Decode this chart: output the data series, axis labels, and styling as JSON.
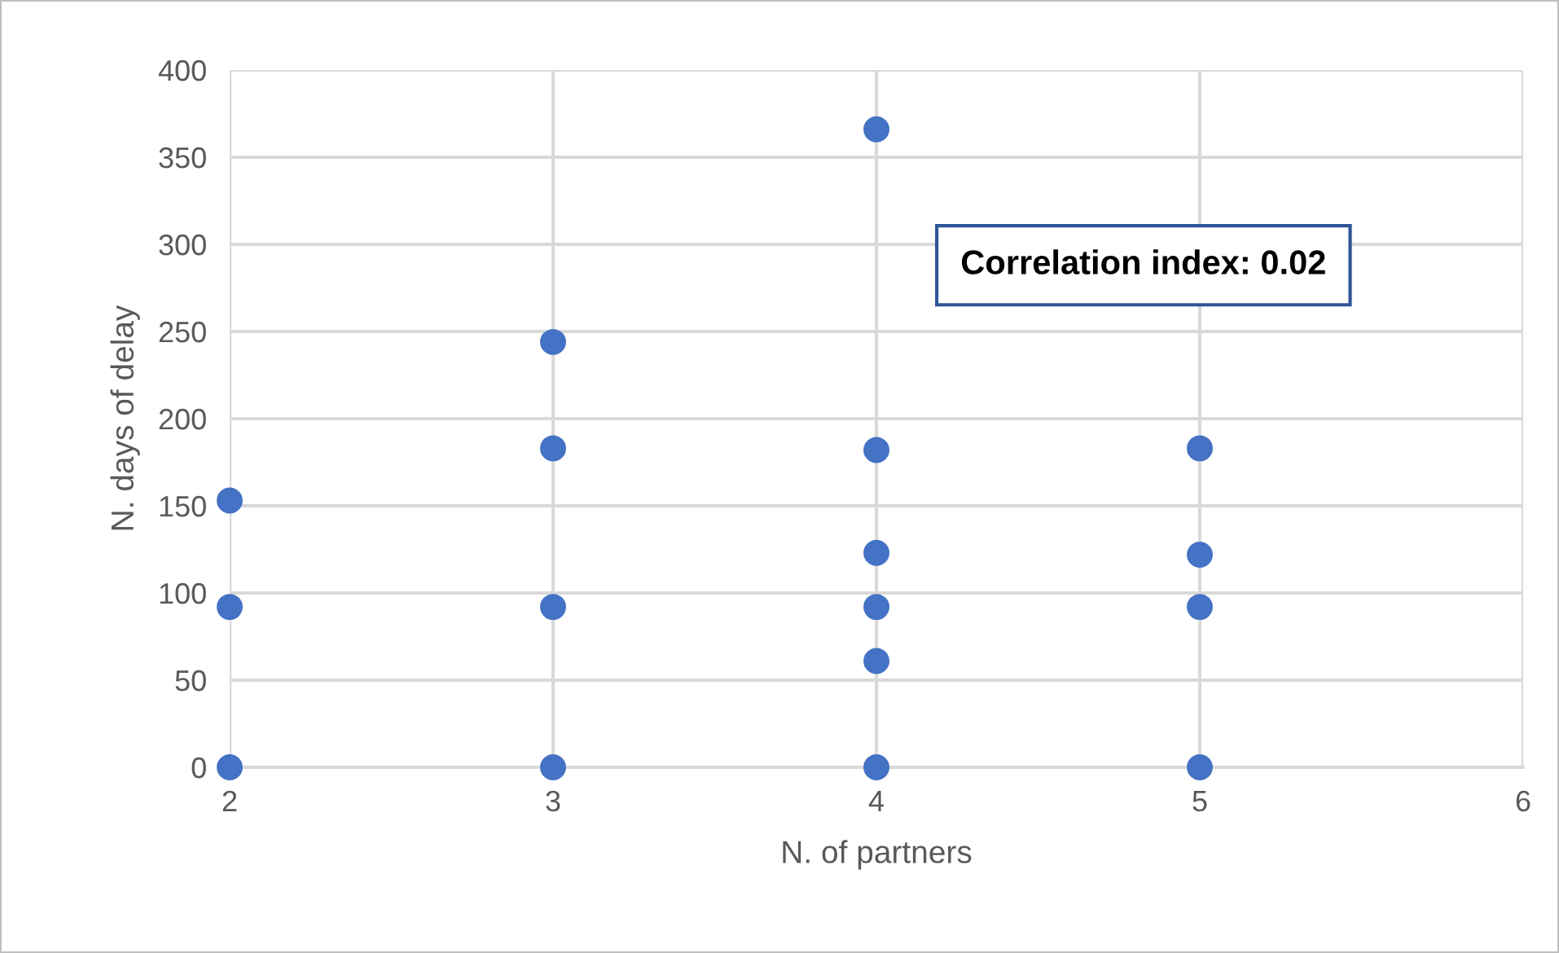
{
  "chart_data": {
    "type": "scatter",
    "xlabel": "N. of partners",
    "ylabel": "N. days of delay",
    "x": [
      2,
      2,
      2,
      3,
      3,
      3,
      3,
      4,
      4,
      4,
      4,
      4,
      4,
      5,
      5,
      5,
      5
    ],
    "values": [
      0,
      92,
      153,
      0,
      92,
      183,
      244,
      0,
      61,
      92,
      123,
      182,
      366,
      0,
      92,
      122,
      183
    ],
    "color": "#4472c4",
    "marker": "circle",
    "xlim": [
      2,
      6
    ],
    "xticks": [
      2,
      3,
      4,
      5,
      6
    ],
    "ylim": [
      0,
      400
    ],
    "yticks": [
      0,
      50,
      100,
      150,
      200,
      250,
      300,
      350,
      400
    ],
    "grid": true,
    "legend": false,
    "annotations": [
      "Correlation index: 0.02"
    ]
  }
}
